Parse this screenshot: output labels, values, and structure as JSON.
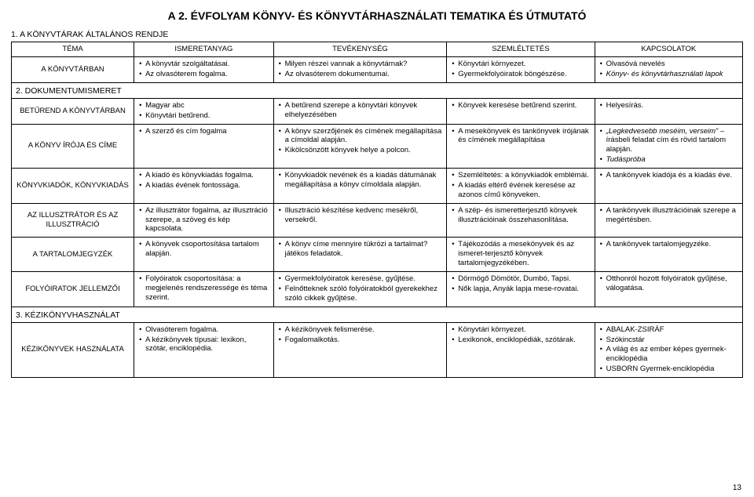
{
  "title": "A 2. ÉVFOLYAM KÖNYV- ÉS KÖNYVTÁRHASZNÁLATI TEMATIKA ÉS ÚTMUTATÓ",
  "page_number": "13",
  "colors": {
    "text": "#000000",
    "border": "#000000",
    "background": "#ffffff"
  },
  "columns": [
    "TÉMA",
    "ISMERETANYAG",
    "TEVÉKENYSÉG",
    "SZEMLÉLTETÉS",
    "KAPCSOLATOK"
  ],
  "sections": [
    {
      "heading": "1. A KÖNYVTÁRAK ÁLTALÁNOS RENDJE",
      "rows": [
        {
          "label": "A KÖNYVTÁRBAN",
          "ismeretanyag": [
            "A könyvtár szolgáltatásai.",
            "Az olvasóterem fogalma."
          ],
          "tevekenyseg": [
            "Milyen részei vannak a könyvtárnak?",
            "Az olvasóterem dokumentumai."
          ],
          "szemleltetes": [
            "Könyvtári környezet.",
            "Gyermekfolyóiratok böngészése."
          ],
          "kapcsolatok": [
            "Olvasóvá nevelés",
            "Könyv- és könyvtárhasználati lapok"
          ]
        }
      ]
    },
    {
      "heading": "2. DOKUMENTUMISMERET",
      "rows": [
        {
          "label": "BETŰREND A KÖNYVTÁRBAN",
          "ismeretanyag": [
            "Magyar abc",
            "Könyvtári betűrend."
          ],
          "tevekenyseg": [
            "A betűrend szerepe a könyvtári könyvek elhelyezésében"
          ],
          "szemleltetes": [
            "Könyvek keresése betűrend szerint."
          ],
          "kapcsolatok": [
            "Helyesírás."
          ]
        },
        {
          "label": "A KÖNYV ÍRÓJA ÉS CÍME",
          "ismeretanyag": [
            "A szerző és cím fogalma"
          ],
          "tevekenyseg": [
            "A könyv szerzőjének és címének megállapítása a címoldal alapján.",
            "Kikölcsönzött könyvek helye a polcon."
          ],
          "szemleltetes": [
            "A mesekönyvek és tankönyvek írójának és címének megállapítása"
          ],
          "kapcsolatok": [
            "„Legkedvesebb meséim, verseim” – írásbeli feladat cím és rövid tartalom alapján.",
            "Tudáspróba"
          ]
        },
        {
          "label": "KÖNYVKIADÓK, KÖNYVKIADÁS",
          "ismeretanyag": [
            "A kiadó és könyvkiadás fogalma.",
            "A kiadás évének fontossága."
          ],
          "tevekenyseg": [
            "Könyvkiadók nevének és a kiadás dátumának megállapítása a könyv címoldala alapján."
          ],
          "szemleltetes": [
            "Szemléltetés: a könyvkiadók emblémái.",
            "A kiadás eltérő évének keresése az azonos című könyveken."
          ],
          "kapcsolatok": [
            "A tankönyvek kiadója és a kiadás éve."
          ]
        },
        {
          "label": "AZ ILLUSZTRÁTOR ÉS AZ ILLUSZTRÁCIÓ",
          "ismeretanyag": [
            "Az illusztrátor fogalma, az illusztráció szerepe, a szöveg és kép kapcsolata."
          ],
          "tevekenyseg": [
            "Illusztráció készítése kedvenc mesékről, versekről."
          ],
          "szemleltetes": [
            "A szép- és ismeretterjesztő könyvek illusztrációinak összehasonlítása."
          ],
          "kapcsolatok": [
            "A tankönyvek illusztrációinak szerepe a megértésben."
          ]
        },
        {
          "label": "A TARTALOMJEGYZÉK",
          "ismeretanyag": [
            "A könyvek csoportosítása tartalom alapján."
          ],
          "tevekenyseg": [
            "A könyv címe mennyire tükrözi a tartalmat? játékos feladatok."
          ],
          "szemleltetes": [
            "Tájékozódás a mesekönyvek és az ismeret-terjesztő könyvek tartalomjegyzékében."
          ],
          "kapcsolatok": [
            "A tankönyvek tartalomjegyzéke."
          ]
        },
        {
          "label": "FOLYÓIRATOK JELLEMZŐI",
          "ismeretanyag": [
            "Folyóiratok csoportosítása: a megjelenés rendszeressége és téma szerint."
          ],
          "tevekenyseg": [
            "Gyermekfolyóiratok keresése, gyűjtése.",
            "Felnőtteknek szóló folyóiratokból gyerekekhez szóló cikkek gyűjtése."
          ],
          "szemleltetes": [
            "Dörmögő Dömötör, Dumbó, Tapsi.",
            "Nők lapja, Anyák lapja mese-rovatai."
          ],
          "kapcsolatok": [
            "Otthonról hozott folyóiratok gyűjtése, válogatása."
          ]
        }
      ]
    },
    {
      "heading": "3. KÉZIKÖNYVHASZNÁLAT",
      "rows": [
        {
          "label": "KÉZIKÖNYVEK HASZNÁLATA",
          "ismeretanyag": [
            "Olvasóterem fogalma.",
            "A kézikönyvek típusai: lexikon, szótár, enciklopédia."
          ],
          "tevekenyseg": [
            "A kézikönyvek felismerése.",
            "Fogalomalkotás."
          ],
          "szemleltetes": [
            "Könyvtári környezet.",
            "Lexikonok, enciklopédiák, szótárak."
          ],
          "kapcsolatok": [
            "ABALAK-ZSIRÁF",
            "Szókincstár",
            "A világ és az ember képes gyermek-enciklopédia",
            "USBORN Gyermek-enciklopédia"
          ]
        }
      ]
    }
  ]
}
